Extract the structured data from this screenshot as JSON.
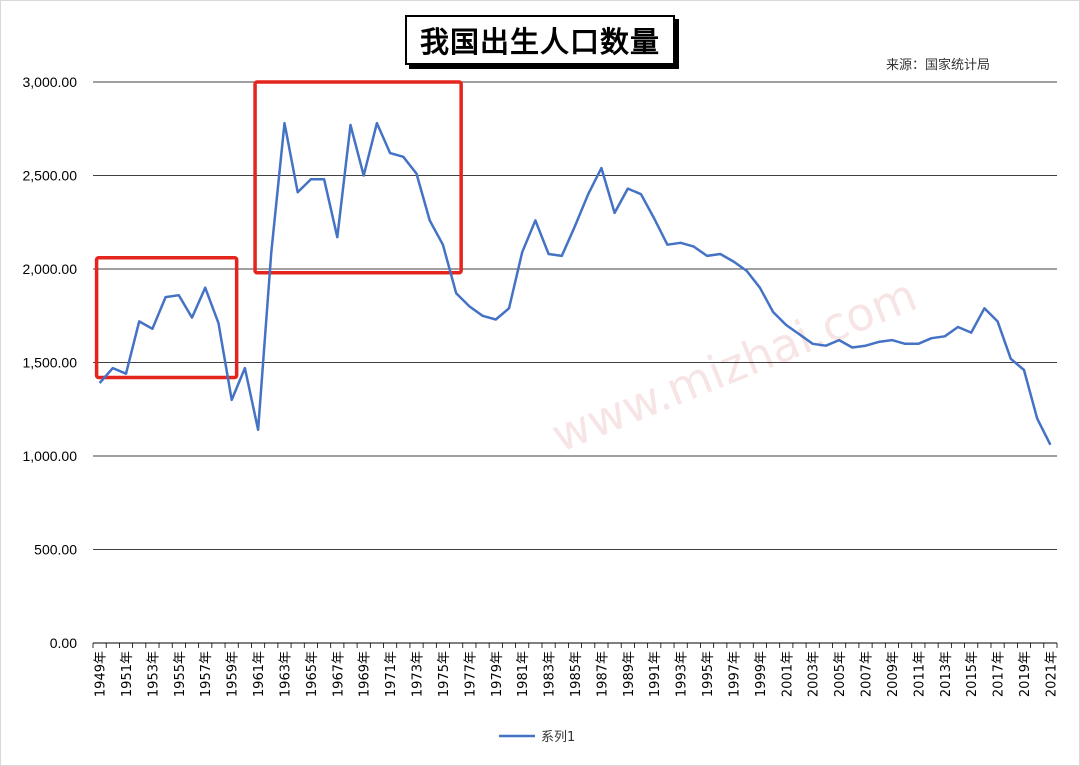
{
  "chart_data": {
    "type": "line",
    "title": "我国出生人口数量",
    "source_note": "来源：国家统计局",
    "ylim": [
      0,
      3000
    ],
    "yticks": [
      "0.00",
      "500.00",
      "1,000.00",
      "1,500.00",
      "2,000.00",
      "2,500.00",
      "3,000.00"
    ],
    "grid": true,
    "legend_position": "bottom",
    "x": [
      "1949年",
      "1950年",
      "1951年",
      "1952年",
      "1953年",
      "1954年",
      "1955年",
      "1956年",
      "1957年",
      "1958年",
      "1959年",
      "1960年",
      "1961年",
      "1962年",
      "1963年",
      "1964年",
      "1965年",
      "1966年",
      "1967年",
      "1968年",
      "1969年",
      "1970年",
      "1971年",
      "1972年",
      "1973年",
      "1974年",
      "1975年",
      "1976年",
      "1977年",
      "1978年",
      "1979年",
      "1980年",
      "1981年",
      "1982年",
      "1983年",
      "1984年",
      "1985年",
      "1986年",
      "1987年",
      "1988年",
      "1989年",
      "1990年",
      "1991年",
      "1992年",
      "1993年",
      "1994年",
      "1995年",
      "1996年",
      "1997年",
      "1998年",
      "1999年",
      "2000年",
      "2001年",
      "2002年",
      "2003年",
      "2004年",
      "2005年",
      "2006年",
      "2007年",
      "2008年",
      "2009年",
      "2010年",
      "2011年",
      "2012年",
      "2013年",
      "2014年",
      "2015年",
      "2016年",
      "2017年",
      "2018年",
      "2019年",
      "2020年",
      "2021年"
    ],
    "xtick_labels": [
      "1949年",
      "1951年",
      "1953年",
      "1955年",
      "1957年",
      "1959年",
      "1961年",
      "1963年",
      "1965年",
      "1967年",
      "1969年",
      "1971年",
      "1973年",
      "1975年",
      "1977年",
      "1979年",
      "1981年",
      "1983年",
      "1985年",
      "1987年",
      "1989年",
      "1991年",
      "1993年",
      "1995年",
      "1997年",
      "1999年",
      "2001年",
      "2003年",
      "2005年",
      "2007年",
      "2009年",
      "2011年",
      "2013年",
      "2015年",
      "2017年",
      "2019年",
      "2021年"
    ],
    "series": [
      {
        "name": "系列1",
        "color": "#4472c4",
        "values": [
          1390,
          1470,
          1440,
          1720,
          1680,
          1850,
          1860,
          1740,
          1900,
          1710,
          1300,
          1470,
          1140,
          2090,
          2780,
          2410,
          2480,
          2480,
          2170,
          2770,
          2500,
          2780,
          2620,
          2600,
          2510,
          2260,
          2130,
          1870,
          1800,
          1750,
          1730,
          1790,
          2090,
          2260,
          2080,
          2070,
          2230,
          2400,
          2540,
          2300,
          2430,
          2400,
          2270,
          2130,
          2140,
          2120,
          2070,
          2080,
          2040,
          1990,
          1900,
          1770,
          1700,
          1650,
          1600,
          1590,
          1620,
          1580,
          1590,
          1610,
          1620,
          1600,
          1600,
          1630,
          1640,
          1690,
          1660,
          1790,
          1720,
          1520,
          1460,
          1200,
          1060
        ]
      }
    ],
    "highlight_color": "#e3251d",
    "highlights": [
      {
        "x_start": "1949年",
        "x_end": "1959年",
        "y_low": 1420,
        "y_high": 2060
      },
      {
        "x_start": "1961年",
        "x_end": "1976年",
        "y_low": 1980,
        "y_high": 3000
      }
    ]
  },
  "watermark": {
    "text": "www.mizhai.com",
    "color": "#f4d0d0"
  },
  "colors": {
    "line": "#4472c4",
    "grid": "#000000",
    "highlight": "#e3251d"
  }
}
